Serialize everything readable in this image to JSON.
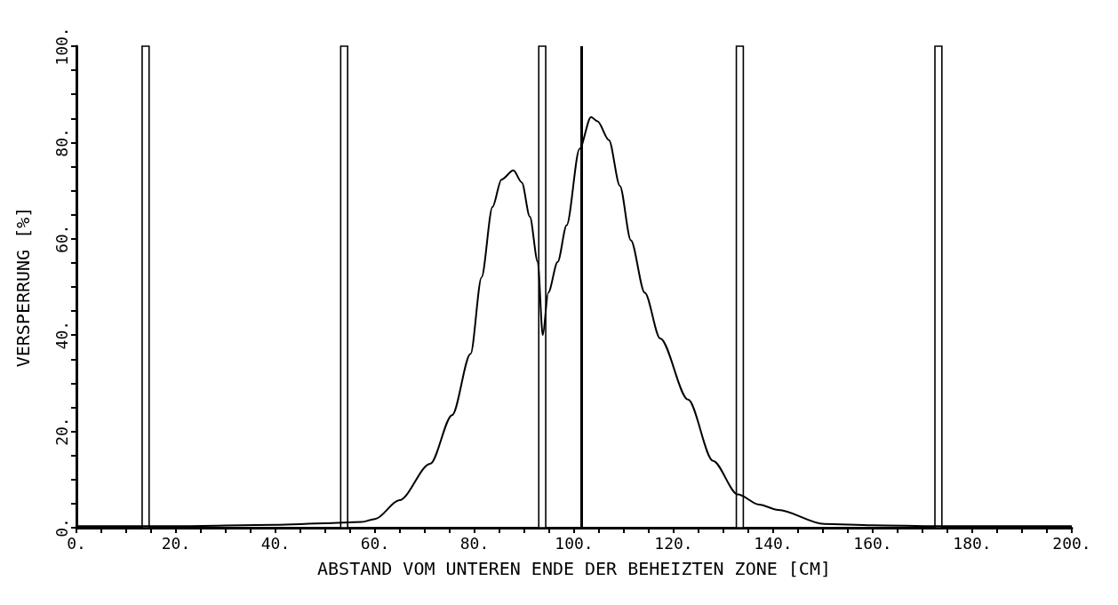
{
  "chart_data": {
    "type": "line",
    "xlabel": "ABSTAND VOM UNTEREN ENDE DER BEHEIZTEN ZONE [CM]",
    "ylabel": "VERSPERRUNG [%]",
    "x": [
      0,
      20,
      40,
      50,
      57.3,
      60,
      64.9,
      71.1,
      75.5,
      79.2,
      81.4,
      83.6,
      85.4,
      87.8,
      89.5,
      91.1,
      92.7,
      93.7,
      94.8,
      96.7,
      98.5,
      101.1,
      103.4,
      104.7,
      107,
      109.2,
      111.4,
      114.2,
      117.3,
      122.9,
      127.9,
      132.9,
      137.2,
      141,
      150.2,
      160,
      173,
      200
    ],
    "series": [
      {
        "color": "#000000",
        "values": [
          0.3,
          0.3,
          0.6,
          0.9,
          1.2,
          1.8,
          5.7,
          13.3,
          23.4,
          36.1,
          52,
          66.6,
          72.3,
          74.2,
          71.7,
          64.6,
          55.2,
          40,
          48.8,
          55.2,
          62.8,
          78.7,
          85.3,
          84.4,
          80.5,
          71,
          59.7,
          48.8,
          39.3,
          26.6,
          13.9,
          6.9,
          4.8,
          3.7,
          0.8,
          0.5,
          0.3,
          0.3
        ]
      }
    ],
    "xlim": [
      0,
      200
    ],
    "xticks": [
      {
        "value": 0,
        "label": "0."
      },
      {
        "value": 5,
        "label": null
      },
      {
        "value": 10,
        "label": null
      },
      {
        "value": 15,
        "label": null
      },
      {
        "value": 20,
        "label": "20."
      },
      {
        "value": 25,
        "label": null
      },
      {
        "value": 30,
        "label": null
      },
      {
        "value": 35,
        "label": null
      },
      {
        "value": 40,
        "label": "40."
      },
      {
        "value": 45,
        "label": null
      },
      {
        "value": 50,
        "label": null
      },
      {
        "value": 55,
        "label": null
      },
      {
        "value": 60,
        "label": "60."
      },
      {
        "value": 65,
        "label": null
      },
      {
        "value": 70,
        "label": null
      },
      {
        "value": 75,
        "label": null
      },
      {
        "value": 80,
        "label": "80."
      },
      {
        "value": 85,
        "label": null
      },
      {
        "value": 90,
        "label": null
      },
      {
        "value": 95,
        "label": null
      },
      {
        "value": 100,
        "label": "100."
      },
      {
        "value": 105,
        "label": null
      },
      {
        "value": 110,
        "label": null
      },
      {
        "value": 115,
        "label": null
      },
      {
        "value": 120,
        "label": "120."
      },
      {
        "value": 125,
        "label": null
      },
      {
        "value": 130,
        "label": null
      },
      {
        "value": 135,
        "label": null
      },
      {
        "value": 140,
        "label": "140."
      },
      {
        "value": 145,
        "label": null
      },
      {
        "value": 150,
        "label": null
      },
      {
        "value": 155,
        "label": null
      },
      {
        "value": 160,
        "label": "160."
      },
      {
        "value": 165,
        "label": null
      },
      {
        "value": 170,
        "label": null
      },
      {
        "value": 175,
        "label": null
      },
      {
        "value": 180,
        "label": "180."
      },
      {
        "value": 185,
        "label": null
      },
      {
        "value": 190,
        "label": null
      },
      {
        "value": 195,
        "label": null
      },
      {
        "value": 200,
        "label": "200."
      }
    ],
    "ylim": [
      0,
      100
    ],
    "yticks": [
      {
        "value": 0,
        "label": "0."
      },
      {
        "value": 5,
        "label": null
      },
      {
        "value": 10,
        "label": null
      },
      {
        "value": 15,
        "label": null
      },
      {
        "value": 20,
        "label": "20."
      },
      {
        "value": 25,
        "label": null
      },
      {
        "value": 30,
        "label": null
      },
      {
        "value": 35,
        "label": null
      },
      {
        "value": 40,
        "label": "40."
      },
      {
        "value": 45,
        "label": null
      },
      {
        "value": 50,
        "label": null
      },
      {
        "value": 55,
        "label": null
      },
      {
        "value": 60,
        "label": "60."
      },
      {
        "value": 65,
        "label": null
      },
      {
        "value": 70,
        "label": null
      },
      {
        "value": 75,
        "label": null
      },
      {
        "value": 80,
        "label": "80."
      },
      {
        "value": 85,
        "label": null
      },
      {
        "value": 90,
        "label": null
      },
      {
        "value": 95,
        "label": null
      },
      {
        "value": 100,
        "label": "100."
      }
    ],
    "bands": [
      {
        "axis": "x",
        "from": 13.2,
        "to": 14.6,
        "color": "#ffffff"
      },
      {
        "axis": "x",
        "from": 53.1,
        "to": 54.5,
        "color": "#ffffff"
      },
      {
        "axis": "x",
        "from": 92.9,
        "to": 94.3,
        "color": "#ffffff"
      },
      {
        "axis": "x",
        "from": 132.6,
        "to": 134,
        "color": "#ffffff"
      },
      {
        "axis": "x",
        "from": 172.5,
        "to": 173.9,
        "color": "#ffffff"
      }
    ],
    "ref_lines": [
      {
        "axis": "x",
        "value": 101.5,
        "color": "#000000",
        "line_style": "solid"
      }
    ],
    "grid": false,
    "marker": "none",
    "line_style": "solid"
  }
}
